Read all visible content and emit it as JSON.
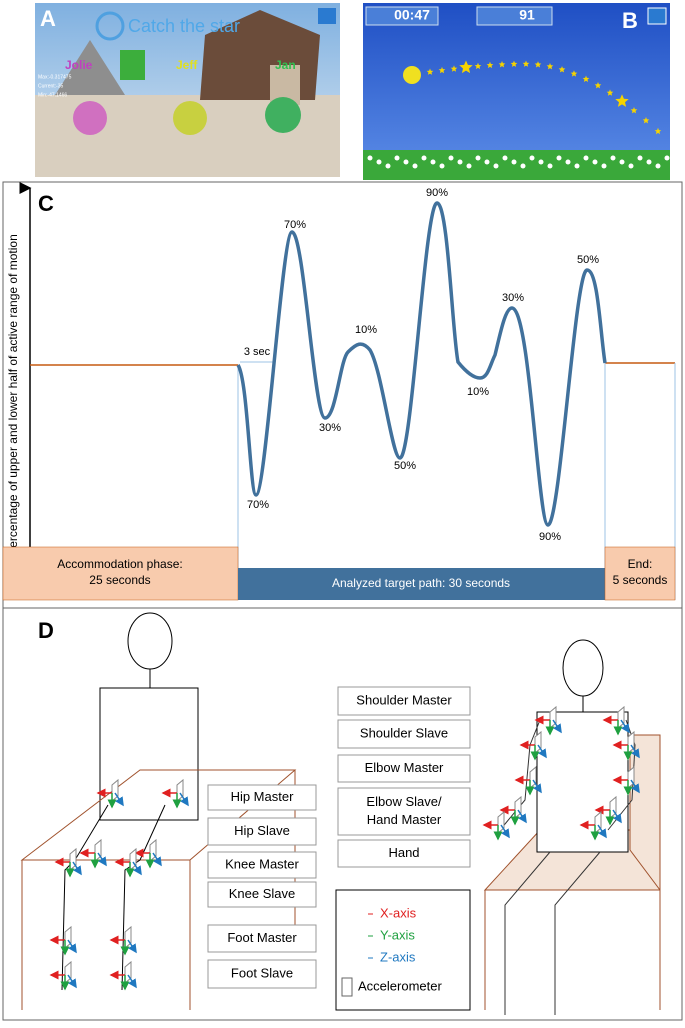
{
  "panel_a": {
    "label": "A",
    "title": "Catch the star",
    "players": [
      "Jolie",
      "Jeff",
      "Jan"
    ],
    "stats": [
      "Max:-0.317475",
      "Current:-35",
      "Min:-47.1466"
    ]
  },
  "panel_b": {
    "label": "B",
    "timer": "00:47",
    "score": "91"
  },
  "panel_c": {
    "label": "C",
    "y_axis_label": "Percentage of upper and lower half of active range of motion",
    "interval_label": "3 sec",
    "peak_labels": [
      "70%",
      "70%",
      "30%",
      "10%",
      "50%",
      "90%",
      "10%",
      "30%",
      "90%",
      "50%"
    ],
    "phases": [
      {
        "lines": [
          "Accommodation phase:",
          "25 seconds"
        ]
      },
      {
        "lines": [
          "Analyzed target path: 30 seconds"
        ]
      },
      {
        "lines": [
          "End:",
          "5 seconds"
        ]
      }
    ]
  },
  "panel_d": {
    "label": "D",
    "lower_body_sensors": [
      "Hip Master",
      "Hip Slave",
      "Knee Master",
      "Knee Slave",
      "Foot Master",
      "Foot Slave"
    ],
    "upper_body_sensors": [
      {
        "lines": [
          "Shoulder Master"
        ]
      },
      {
        "lines": [
          "Shoulder Slave"
        ]
      },
      {
        "lines": [
          "Elbow Master"
        ]
      },
      {
        "lines": [
          "Elbow Slave/",
          "Hand Master"
        ]
      },
      {
        "lines": [
          "Hand"
        ]
      }
    ],
    "legend": {
      "axes": [
        "X-axis",
        "Y-axis",
        "Z-axis"
      ],
      "accelerometer": "Accelerometer"
    }
  }
}
